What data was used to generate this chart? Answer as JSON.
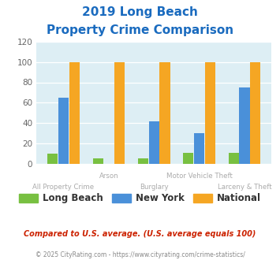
{
  "title_line1": "2019 Long Beach",
  "title_line2": "Property Crime Comparison",
  "categories": [
    "All Property Crime",
    "Arson",
    "Burglary",
    "Motor Vehicle Theft",
    "Larceny & Theft"
  ],
  "long_beach": [
    10,
    5,
    5,
    11,
    11
  ],
  "new_york": [
    65,
    0,
    42,
    30,
    75
  ],
  "national": [
    100,
    100,
    100,
    100,
    100
  ],
  "colors": {
    "long_beach": "#78c041",
    "new_york": "#4a90d9",
    "national": "#f5a623"
  },
  "ylim": [
    0,
    120
  ],
  "yticks": [
    0,
    20,
    40,
    60,
    80,
    100,
    120
  ],
  "bg_color": "#ddeef4",
  "title_color": "#1a6bbf",
  "xlabel_color": "#aaaaaa",
  "footer_note": "Compared to U.S. average. (U.S. average equals 100)",
  "copyright": "© 2025 CityRating.com - https://www.cityrating.com/crime-statistics/",
  "legend_labels": [
    "Long Beach",
    "New York",
    "National"
  ],
  "cat_labels_bottom": [
    "All Property Crime",
    "",
    "Burglary",
    "",
    "Larceny & Theft"
  ],
  "cat_labels_top": [
    "",
    "Arson",
    "",
    "Motor Vehicle Theft",
    ""
  ]
}
